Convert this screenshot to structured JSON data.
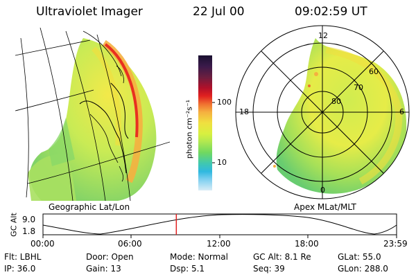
{
  "header": {
    "instrument": "Ultraviolet Imager",
    "date": "22 Jul 00",
    "time": "09:02:59 UT"
  },
  "colorbar": {
    "unit_label": "photon cm⁻²s⁻¹",
    "tick_labels": [
      "100",
      "10"
    ],
    "colors": [
      "#1a1030",
      "#3a1a4a",
      "#6a1e40",
      "#b0102a",
      "#e02020",
      "#f07030",
      "#f5b040",
      "#f0e040",
      "#d8f040",
      "#b0e850",
      "#70d860",
      "#40c8b0",
      "#30b8e0",
      "#80d0f0",
      "#d8ecf6"
    ]
  },
  "geo_panel": {
    "caption": "Geographic Lat/Lon"
  },
  "polar_panel": {
    "caption": "Apex MLat/MLT",
    "mlt_labels": {
      "top": "12",
      "left": "18",
      "right": "6",
      "bottom": "0"
    },
    "lat_labels": [
      "60",
      "70",
      "80"
    ]
  },
  "timeline": {
    "axis_label": "GC Alt",
    "y_labels": {
      "top": "9.0",
      "bottom": "1.8"
    },
    "x_labels": [
      "00:00",
      "06:00",
      "12:00",
      "18:00",
      "23:59"
    ],
    "marker_hours": 9.05
  },
  "info": {
    "flt": "Flt: LBHL",
    "door": "Door: Open",
    "mode": "Mode: Normal",
    "gcalt": "GC Alt: 8.1 Re",
    "glat": "GLat:  55.0",
    "ip": "IP: 36.0",
    "gain": "Gain: 13",
    "dsp": "Dsp:     5.1",
    "seq": "Seq: 39",
    "glon": "GLon: 288.0"
  }
}
